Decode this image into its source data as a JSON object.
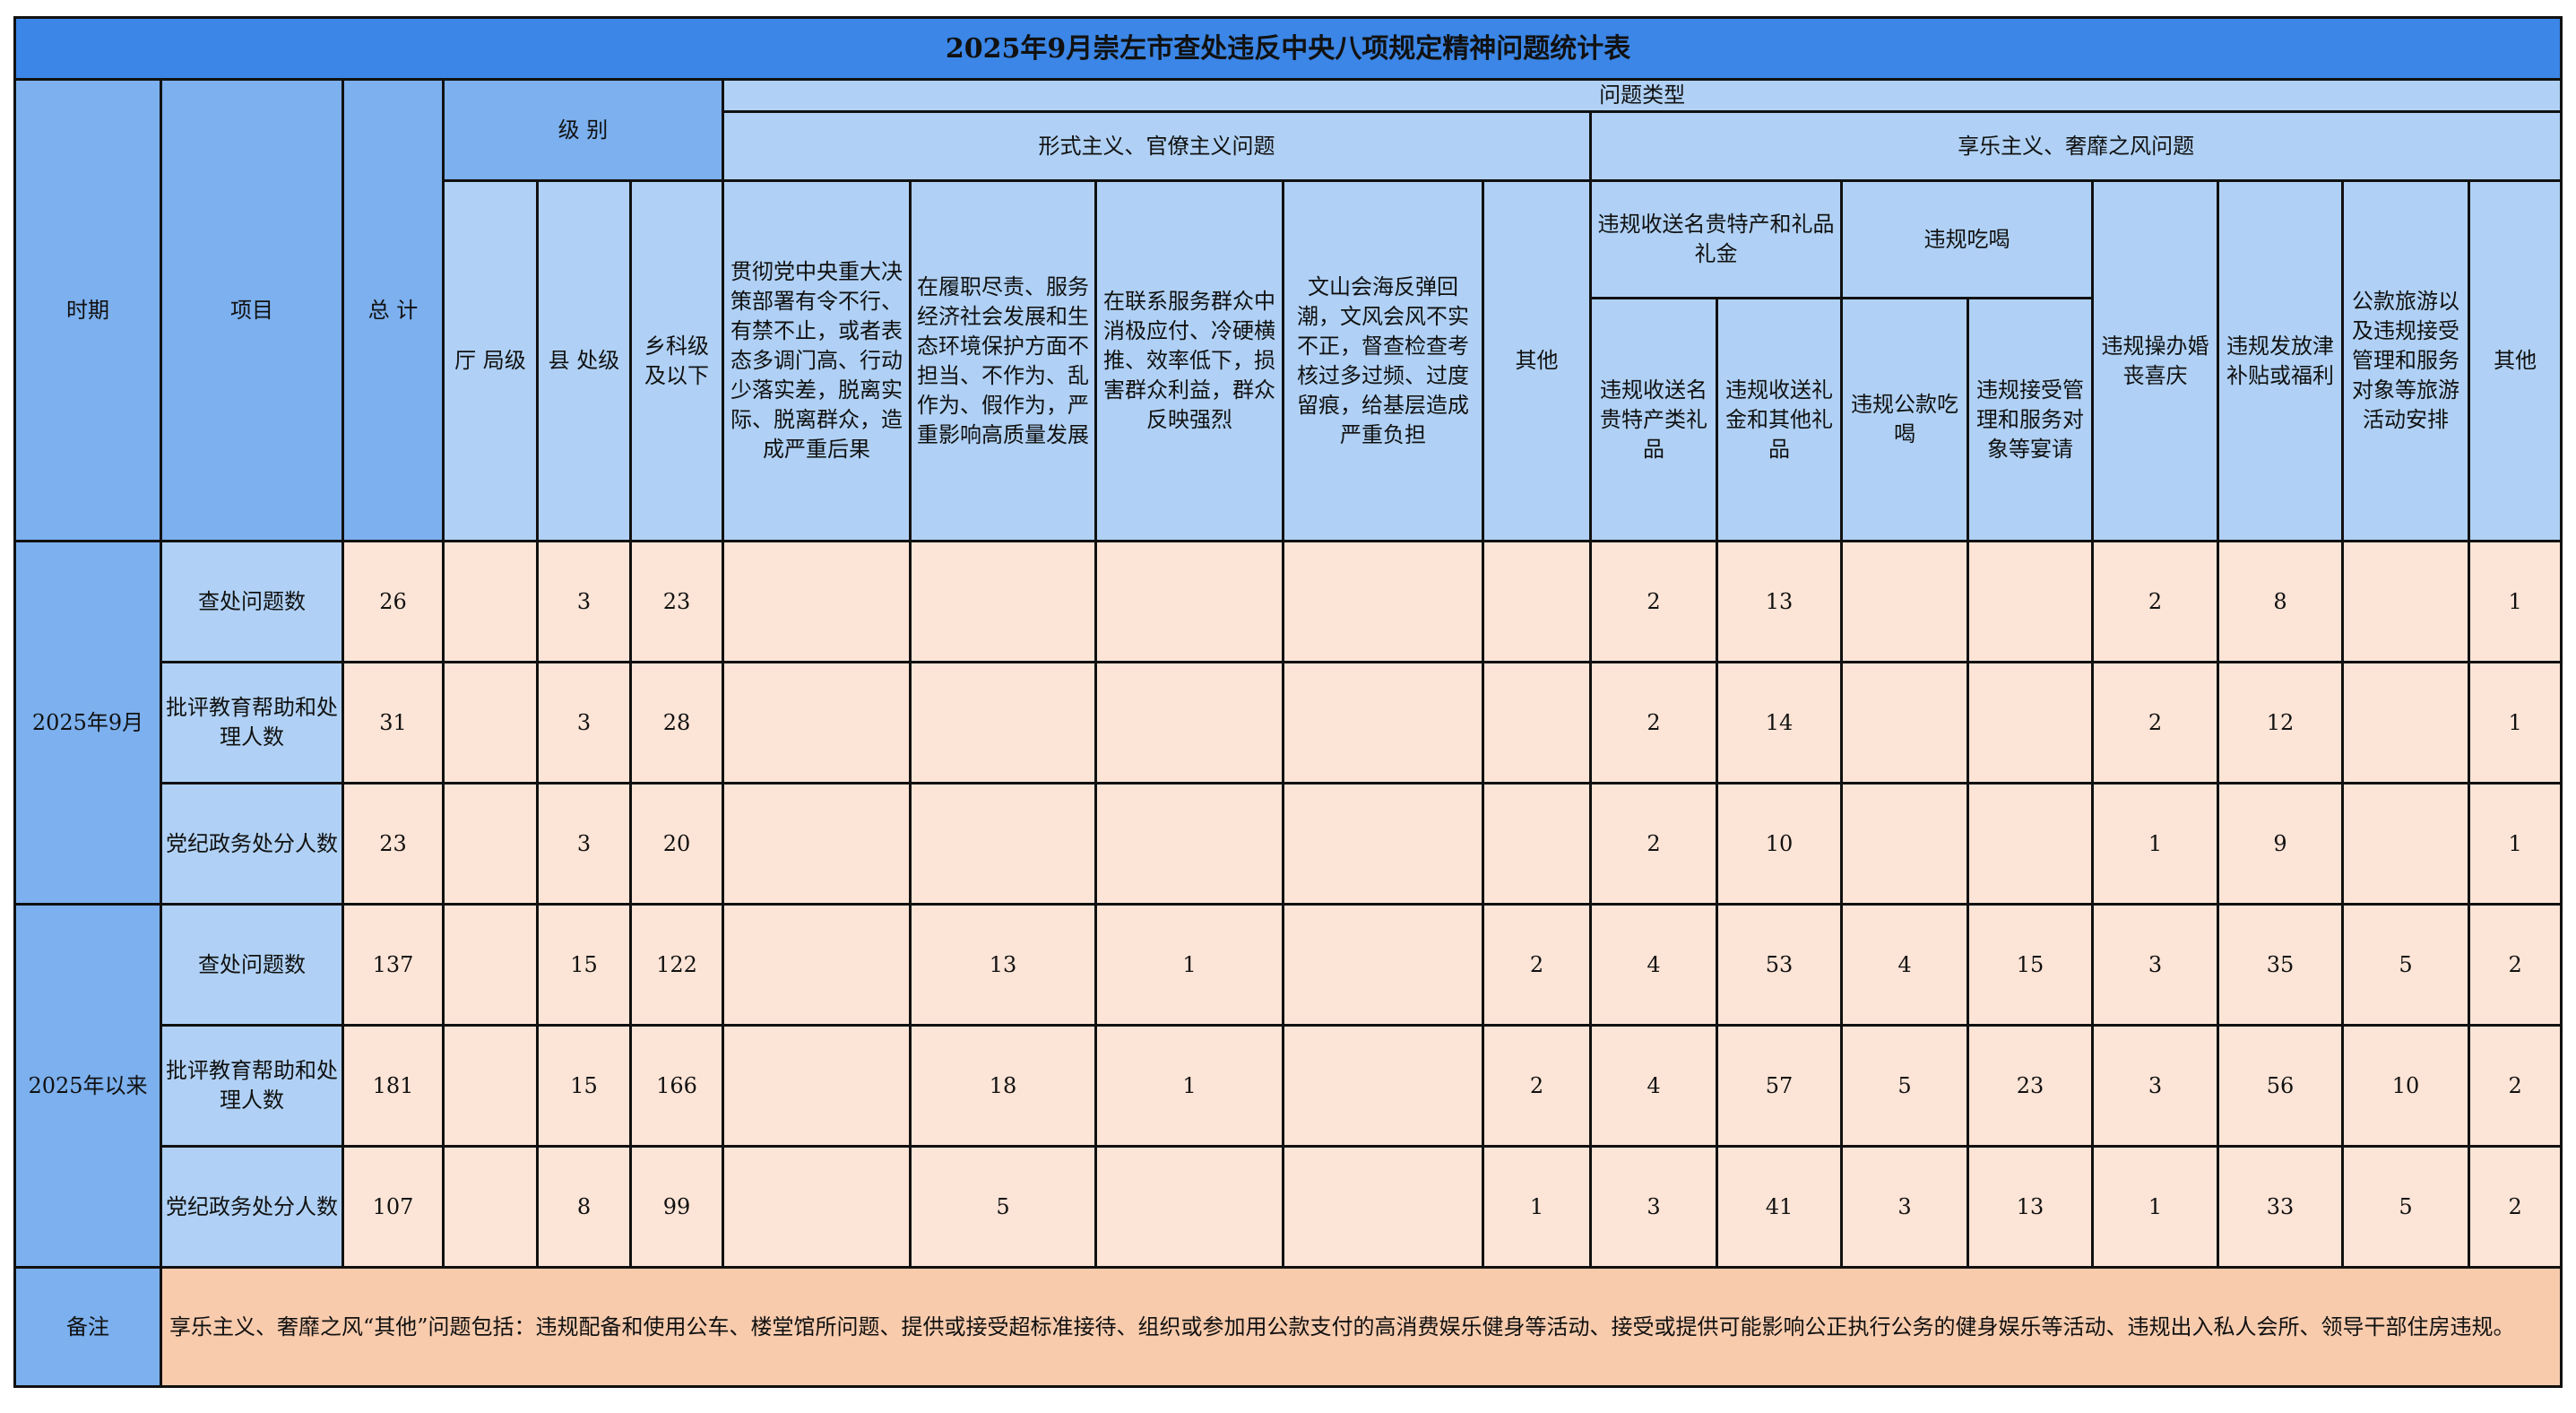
{
  "title": "2025年9月崇左市查处违反中央八项规定精神问题统计表",
  "headers": {
    "period": "时期",
    "item": "项目",
    "total": "总 计",
    "level": "级 别",
    "problem_type": "问题类型",
    "formalism": "形式主义、官僚主义问题",
    "hedonism": "享乐主义、奢靡之风问题",
    "level_cols": [
      "厅 局级",
      "县 处级",
      "乡科级及以下"
    ],
    "formalism_cols": [
      "贯彻党中央重大决策部署有令不行、有禁不止，或者表态多调门高、行动少落实差，脱离实际、脱离群众，造成严重后果",
      "在履职尽责、服务经济社会发展和生态环境保护方面不担当、不作为、乱作为、假作为，严重影响高质量发展",
      "在联系服务群众中消极应付、冷硬横推、效率低下，损害群众利益，群众反映强烈",
      "文山会海反弹回潮，文风会风不实不正，督查检查考核过多过频、过度留痕，给基层造成严重负担",
      "其他"
    ],
    "gift_group": "违规收送名贵特产和礼品礼金",
    "dining_group": "违规吃喝",
    "gift_cols": [
      "违规收送名贵特产类礼品",
      "违规收送礼金和其他礼品"
    ],
    "dining_cols": [
      "违规公款吃喝",
      "违规接受管理和服务对象等宴请"
    ],
    "other_cols": [
      "违规操办婚丧喜庆",
      "违规发放津补贴或福利",
      "公款旅游以及违规接受管理和服务对象等旅游活动安排",
      "其他"
    ]
  },
  "groups": [
    {
      "period": "2025年9月",
      "rows": [
        {
          "item": "查处问题数",
          "values": [
            "26",
            "",
            "3",
            "23",
            "",
            "",
            "",
            "",
            "",
            "2",
            "13",
            "",
            "",
            "2",
            "8",
            "",
            "1"
          ]
        },
        {
          "item": "批评教育帮助和处理人数",
          "values": [
            "31",
            "",
            "3",
            "28",
            "",
            "",
            "",
            "",
            "",
            "2",
            "14",
            "",
            "",
            "2",
            "12",
            "",
            "1"
          ]
        },
        {
          "item": "党纪政务处分人数",
          "values": [
            "23",
            "",
            "3",
            "20",
            "",
            "",
            "",
            "",
            "",
            "2",
            "10",
            "",
            "",
            "1",
            "9",
            "",
            "1"
          ]
        }
      ]
    },
    {
      "period": "2025年以来",
      "rows": [
        {
          "item": "查处问题数",
          "values": [
            "137",
            "",
            "15",
            "122",
            "",
            "13",
            "1",
            "",
            "2",
            "4",
            "53",
            "4",
            "15",
            "3",
            "35",
            "5",
            "2"
          ]
        },
        {
          "item": "批评教育帮助和处理人数",
          "values": [
            "181",
            "",
            "15",
            "166",
            "",
            "18",
            "1",
            "",
            "2",
            "4",
            "57",
            "5",
            "23",
            "3",
            "56",
            "10",
            "2"
          ]
        },
        {
          "item": "党纪政务处分人数",
          "values": [
            "107",
            "",
            "8",
            "99",
            "",
            "5",
            "",
            "",
            "1",
            "3",
            "41",
            "3",
            "13",
            "1",
            "33",
            "5",
            "2"
          ]
        }
      ]
    }
  ],
  "note": {
    "label": "备注",
    "text": "享乐主义、奢靡之风“其他”问题包括：违规配备和使用公车、楼堂馆所问题、提供或接受超标准接待、组织或参加用公款支付的高消费娱乐健身等活动、接受或提供可能影响公正执行公务的健身娱乐等活动、违规出入私人会所、领导干部住房违规。"
  },
  "colors": {
    "title": "#3b86e6",
    "header": "#b0d1f5",
    "side": "#7cb0ee",
    "cell": "#fce4d6",
    "note": "#f8cbad"
  }
}
